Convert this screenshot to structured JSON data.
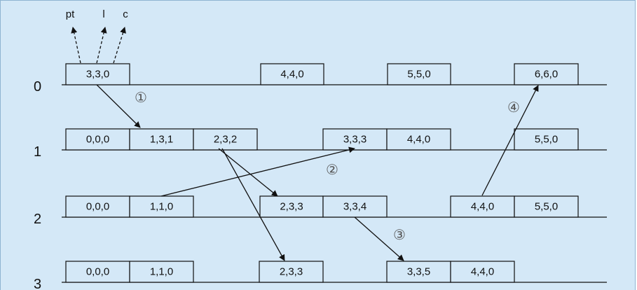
{
  "levels": [
    "0",
    "1",
    "2",
    "3"
  ],
  "pointer_labels": [
    "pt",
    "l",
    "c"
  ],
  "step_markers": [
    "①",
    "②",
    "③",
    "④"
  ],
  "rows": [
    [
      {
        "label": "3,3,0"
      },
      {
        "label": "4,4,0"
      },
      {
        "label": "5,5,0"
      },
      {
        "label": "6,6,0"
      }
    ],
    [
      {
        "label": "0,0,0"
      },
      {
        "label": "1,3,1"
      },
      {
        "label": "2,3,2"
      },
      {
        "label": "3,3,3"
      },
      {
        "label": "4,4,0"
      },
      {
        "label": "5,5,0"
      }
    ],
    [
      {
        "label": "0,0,0"
      },
      {
        "label": "1,1,0"
      },
      {
        "label": "2,3,3"
      },
      {
        "label": "3,3,4"
      },
      {
        "label": "4,4,0"
      },
      {
        "label": "5,5,0"
      }
    ],
    [
      {
        "label": "0,0,0"
      },
      {
        "label": "1,1,0"
      },
      {
        "label": "2,3,3"
      },
      {
        "label": "3,3,5"
      },
      {
        "label": "4,4,0"
      }
    ]
  ]
}
